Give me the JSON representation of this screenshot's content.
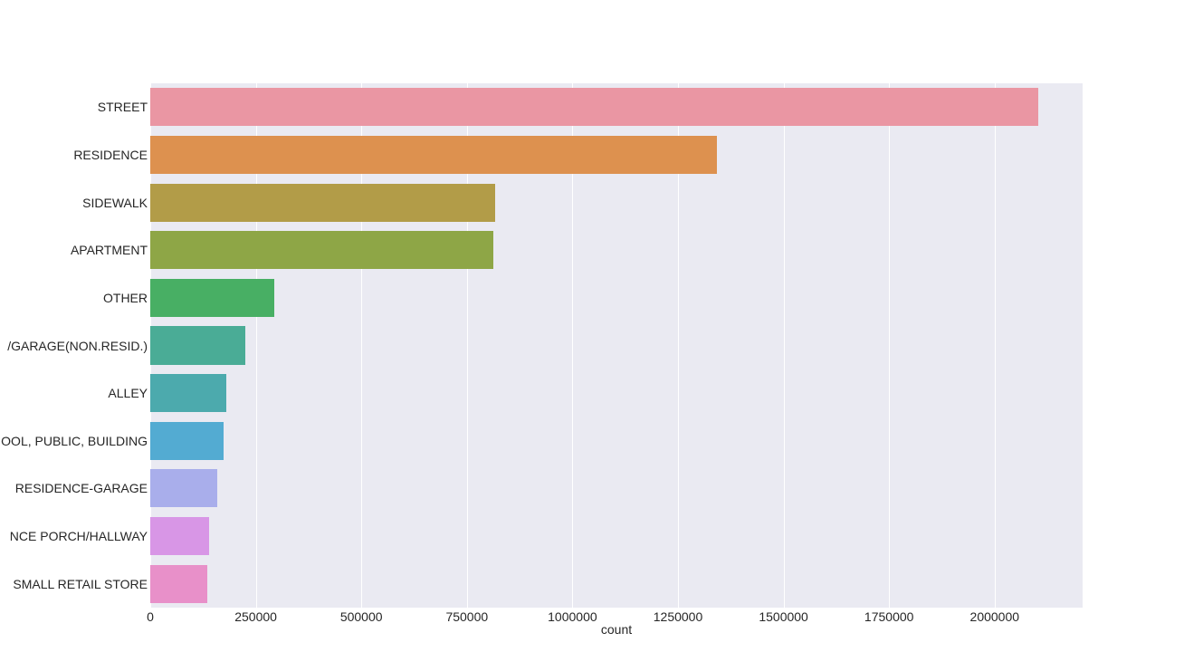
{
  "chart_data": {
    "type": "bar",
    "orientation": "horizontal",
    "title": "",
    "xlabel": "count",
    "ylabel": "",
    "xlim": [
      0,
      2205000
    ],
    "grid": true,
    "x_ticks": [
      "0",
      "250000",
      "500000",
      "750000",
      "1000000",
      "1250000",
      "1500000",
      "1750000",
      "2000000"
    ],
    "x_tick_values": [
      0,
      250000,
      500000,
      750000,
      1000000,
      1250000,
      1500000,
      1750000,
      2000000
    ],
    "categories": [
      "STREET",
      "RESIDENCE",
      "SIDEWALK",
      "APARTMENT",
      "OTHER",
      "/GARAGE(NON.RESID.)",
      "ALLEY",
      "OOL, PUBLIC, BUILDING",
      "RESIDENCE-GARAGE",
      "NCE PORCH/HALLWAY",
      "SMALL RETAIL STORE"
    ],
    "values": [
      2103000,
      1342000,
      817000,
      813000,
      294000,
      225000,
      180000,
      174000,
      158000,
      139000,
      135000
    ],
    "colors": [
      "#ea96a3",
      "#dd914f",
      "#b29c48",
      "#8ea646",
      "#48af64",
      "#4aac96",
      "#4caaad",
      "#53abd2",
      "#a9aeeb",
      "#d896e6",
      "#e890c9"
    ]
  }
}
